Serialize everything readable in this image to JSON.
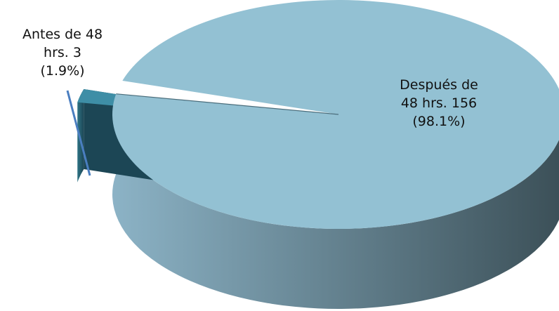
{
  "chart_data": {
    "type": "pie",
    "title": "",
    "style": "3d-exploded",
    "slices": [
      {
        "label_lines": [
          "Después de",
          "48 hrs. 156",
          "(98.1%)"
        ],
        "category": "Después de 48 hrs.",
        "value": 156,
        "percent": 98.1,
        "color": "#93C1D3",
        "side_color_light": "#8CB3C6",
        "side_color_dark": "#3B4F57"
      },
      {
        "label_lines": [
          "Antes de 48",
          "hrs. 3",
          "(1.9%)"
        ],
        "category": "Antes de 48 hrs.",
        "value": 3,
        "percent": 1.9,
        "color": "#3E8EA6",
        "side_color_light": "#2E7385",
        "side_color_dark": "#1C4655"
      }
    ],
    "leader_line_color": "#4A7EC0"
  }
}
